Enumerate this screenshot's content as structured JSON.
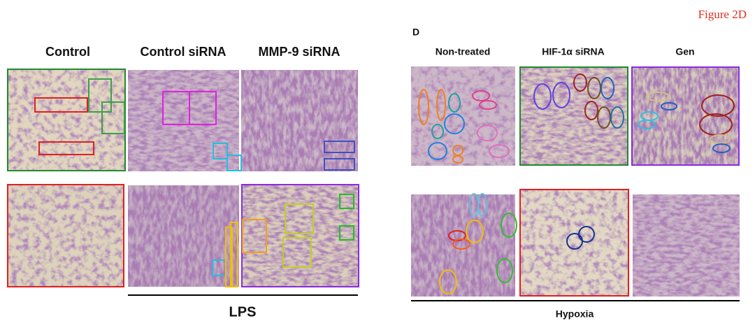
{
  "figure_label": "Figure 2D",
  "panel_label": "D",
  "left": {
    "columns": [
      "Control",
      "Control siRNA",
      "MMP-9 siRNA"
    ],
    "group_label": "LPS"
  },
  "right": {
    "columns": [
      "Non-treated",
      "HIF-1α siRNA",
      "Gen"
    ],
    "group_label": "Hypoxia"
  }
}
